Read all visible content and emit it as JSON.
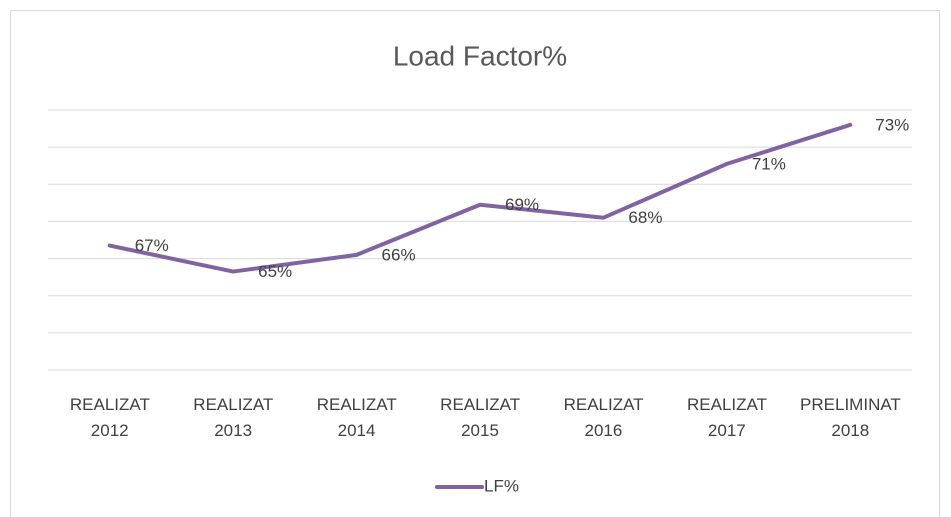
{
  "chart_data": {
    "type": "line",
    "title": "Load Factor%",
    "categories": [
      "REALIZAT 2012",
      "REALIZAT 2013",
      "REALIZAT 2014",
      "REALIZAT 2015",
      "REALIZAT 2016",
      "REALIZAT 2017",
      "PRELIMINAT 2018"
    ],
    "series": [
      {
        "name": "LF%",
        "color": "#8064a2",
        "values": [
          66.7,
          65.3,
          66.2,
          68.9,
          68.2,
          71.1,
          73.2
        ],
        "value_labels": [
          "67%",
          "65%",
          "66%",
          "69%",
          "68%",
          "71%",
          "73%"
        ]
      }
    ],
    "ylim": [
      60,
      74
    ],
    "yticks": [
      60,
      62,
      64,
      66,
      68,
      70,
      72,
      74
    ],
    "grid": true,
    "legend": "bottom"
  }
}
